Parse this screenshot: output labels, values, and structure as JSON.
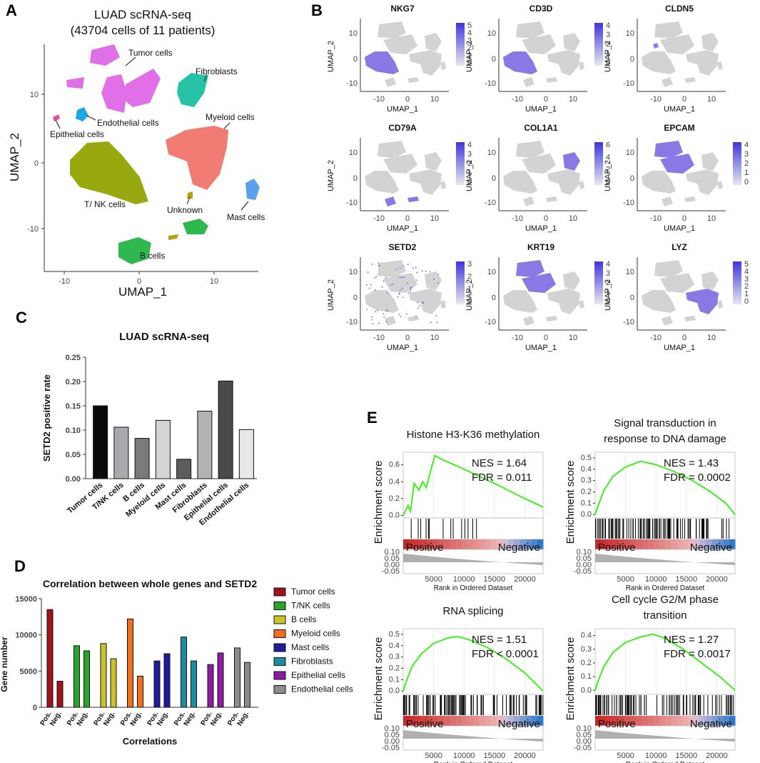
{
  "panels": {
    "a": {
      "letter": "A",
      "title_line1": "LUAD scRNA-seq",
      "title_line2": "(43704 cells of 11 patients)",
      "xlabel": "UMAP_1",
      "ylabel": "UMAP_2",
      "xticks": [
        "-10",
        "0",
        "10"
      ],
      "yticks": [
        "10",
        "0",
        "-10"
      ],
      "labels": {
        "tumor": "Tumor cells",
        "fibroblasts": "Fibroblasts",
        "endothelial": "Endothelial cells",
        "epithelial": "Epithelial cells",
        "myeloid": "Myeloid cells",
        "tnk": "T/ NK cells",
        "unknown": "Unknown",
        "mast": "Mast cells",
        "b": "B cells"
      }
    },
    "b": {
      "letter": "B",
      "xlabel": "UMAP_1",
      "ylabel": "UMAP_2",
      "xticks": [
        "-10",
        "0",
        "10"
      ],
      "yticks": [
        "10",
        "0",
        "-10"
      ],
      "genes": [
        {
          "name": "NKG7",
          "scale": [
            "5",
            "4",
            "3",
            "2",
            "1",
            "0"
          ],
          "hot": "tnk"
        },
        {
          "name": "CD3D",
          "scale": [
            "4",
            "3",
            "2",
            "1",
            "0"
          ],
          "hot": "tnk"
        },
        {
          "name": "CLDN5",
          "scale": [],
          "hot": "endothelial"
        },
        {
          "name": "CD79A",
          "scale": [
            "4",
            "3",
            "2",
            "1",
            "0"
          ],
          "hot": "b"
        },
        {
          "name": "COL1A1",
          "scale": [
            "6",
            "4",
            "2",
            "0"
          ],
          "hot": "fibro"
        },
        {
          "name": "EPCAM",
          "scale": [
            "4",
            "3",
            "2",
            "1",
            "0"
          ],
          "hot": "tumor"
        },
        {
          "name": "SETD2",
          "scale": [
            "3",
            "2",
            "1",
            "0"
          ],
          "hot": "sparse"
        },
        {
          "name": "KRT19",
          "scale": [
            "4",
            "3",
            "2",
            "1",
            "0"
          ],
          "hot": "tumor"
        },
        {
          "name": "LYZ",
          "scale": [
            "5",
            "4",
            "3",
            "2",
            "1",
            "0"
          ],
          "hot": "myeloid"
        }
      ]
    },
    "c": {
      "letter": "C"
    },
    "d": {
      "letter": "D"
    },
    "e": {
      "letter": "E",
      "ylabel": "Enrichment score",
      "xlabel": "Rank in Ordered Dataset",
      "positive": "Positive",
      "negative": "Negative",
      "xticks": [
        "5000",
        "10000",
        "15000",
        "20000"
      ],
      "bottom_ticks": [
        "0.10",
        "0.05",
        "0.00",
        "-0.05"
      ],
      "plots": [
        {
          "title1": "Histone H3-K36 methylation",
          "title2": "",
          "nes": "NES = 1.64",
          "fdr": "FDR = 0.011",
          "yticks": [
            "0.6",
            "0.4",
            "0.2",
            "0.0"
          ],
          "ymax": 0.75,
          "peak": 5200,
          "curve": [
            [
              0,
              0
            ],
            [
              800,
              0.12
            ],
            [
              1200,
              0.05
            ],
            [
              1800,
              0.38
            ],
            [
              2600,
              0.3
            ],
            [
              3200,
              0.4
            ],
            [
              3800,
              0.33
            ],
            [
              4400,
              0.5
            ],
            [
              5200,
              0.71
            ],
            [
              6500,
              0.66
            ],
            [
              10000,
              0.55
            ],
            [
              15000,
              0.38
            ],
            [
              20000,
              0.2
            ],
            [
              23000,
              0.1
            ]
          ]
        },
        {
          "title1": "Signal transduction in",
          "title2": "response to DNA damage",
          "nes": "NES = 1.43",
          "fdr": "FDR = 0.0002",
          "yticks": [
            "0.5",
            "0.4",
            "0.3",
            "0.2",
            "0.1",
            "0.0"
          ],
          "ymax": 0.55,
          "peak": 7500,
          "curve": [
            [
              0,
              0
            ],
            [
              500,
              0.08
            ],
            [
              1500,
              0.22
            ],
            [
              3000,
              0.34
            ],
            [
              5000,
              0.42
            ],
            [
              7500,
              0.47
            ],
            [
              10000,
              0.44
            ],
            [
              13000,
              0.38
            ],
            [
              16000,
              0.3
            ],
            [
              19000,
              0.2
            ],
            [
              21500,
              0.1
            ],
            [
              23000,
              0.0
            ]
          ]
        },
        {
          "title1": "RNA splicing",
          "title2": "",
          "nes": "NES = 1.51",
          "fdr": "FDR < 0.0001",
          "yticks": [
            "0.5",
            "0.4",
            "0.3",
            "0.2",
            "0.1",
            "0.0"
          ],
          "ymax": 0.55,
          "peak": 9000,
          "curve": [
            [
              0,
              0
            ],
            [
              600,
              0.1
            ],
            [
              1500,
              0.22
            ],
            [
              3000,
              0.33
            ],
            [
              5000,
              0.42
            ],
            [
              7500,
              0.47
            ],
            [
              9000,
              0.48
            ],
            [
              11000,
              0.45
            ],
            [
              14000,
              0.38
            ],
            [
              17000,
              0.28
            ],
            [
              20000,
              0.16
            ],
            [
              23000,
              0.0
            ]
          ]
        },
        {
          "title1": "Cell cycle G2/M phase",
          "title2": "transition",
          "nes": "NES = 1.27",
          "fdr": "FDR = 0.0017",
          "yticks": [
            "0.4",
            "0.3",
            "0.2",
            "0.1",
            "0.0"
          ],
          "ymax": 0.45,
          "peak": 9500,
          "curve": [
            [
              0,
              0
            ],
            [
              600,
              0.08
            ],
            [
              1500,
              0.18
            ],
            [
              3000,
              0.28
            ],
            [
              5000,
              0.35
            ],
            [
              7500,
              0.39
            ],
            [
              9500,
              0.41
            ],
            [
              11500,
              0.38
            ],
            [
              14500,
              0.3
            ],
            [
              17500,
              0.2
            ],
            [
              20500,
              0.1
            ],
            [
              23000,
              0.0
            ]
          ]
        }
      ]
    }
  },
  "chart_data": [
    {
      "type": "bar",
      "title": "LUAD scRNA-seq",
      "ylabel": "SETD2 positive rate",
      "xlabel": "",
      "categories": [
        "Tumor cells",
        "T/NK cells",
        "B cells",
        "Myeloid cells",
        "Mast cells",
        "Fibroblasts",
        "Epithelial cells",
        "Endothelial cells"
      ],
      "values": [
        0.15,
        0.106,
        0.083,
        0.12,
        0.04,
        0.139,
        0.201,
        0.101
      ],
      "colors": [
        "#0a0a0a",
        "#a9a9b0",
        "#7a7a7a",
        "#d4d4d4",
        "#5c5c5c",
        "#b2b2b2",
        "#4a4a4a",
        "#e8e8e8"
      ],
      "yticks": [
        "0.25",
        "0.20",
        "0.15",
        "0.10",
        "0.05",
        "0.00"
      ],
      "ylim": [
        0,
        0.25
      ]
    },
    {
      "type": "bar",
      "title": "Correlation between whole genes and SETD2",
      "ylabel": "Gene number",
      "xlabel": "Correlations",
      "categories": [
        "Pos.",
        "Neg."
      ],
      "yticks": [
        "15000",
        "10000",
        "5000",
        "0"
      ],
      "ylim": [
        0,
        15000
      ],
      "series": [
        {
          "name": "Tumor cells",
          "color": "#a0131c",
          "values": [
            13500,
            3600
          ]
        },
        {
          "name": "T/NK cells",
          "color": "#2aa52c",
          "values": [
            8500,
            7800
          ]
        },
        {
          "name": "B cells",
          "color": "#c8c42a",
          "values": [
            8800,
            6700
          ]
        },
        {
          "name": "Myeloid cells",
          "color": "#f0701c",
          "values": [
            12200,
            4300
          ]
        },
        {
          "name": "Mast cells",
          "color": "#1c1c9c",
          "values": [
            6400,
            7400
          ]
        },
        {
          "name": "Fibroblasts",
          "color": "#1c8ca0",
          "values": [
            9700,
            6400
          ]
        },
        {
          "name": "Epithelial cells",
          "color": "#8c1ca0",
          "values": [
            5900,
            7500
          ]
        },
        {
          "name": "Endothelial cells",
          "color": "#8c8c8c",
          "values": [
            8200,
            6200
          ]
        }
      ]
    }
  ]
}
